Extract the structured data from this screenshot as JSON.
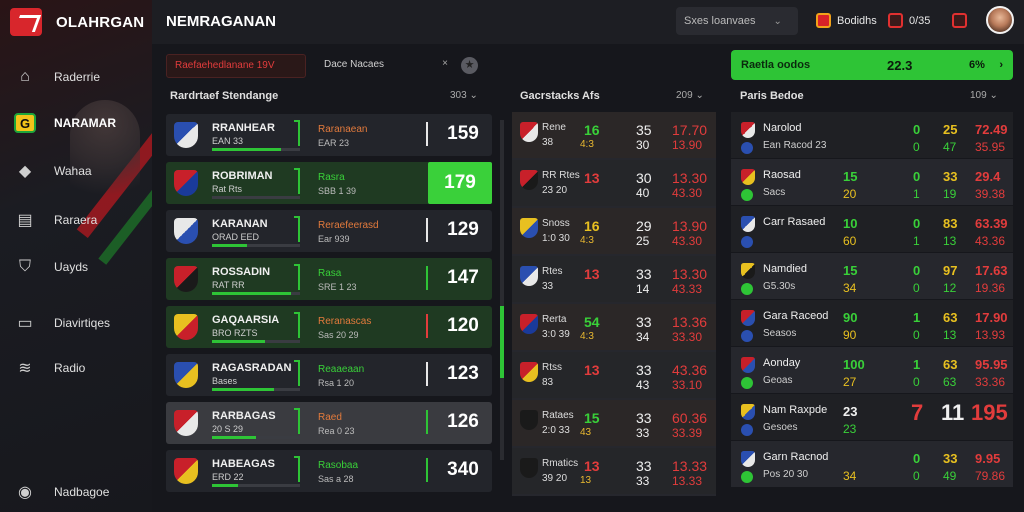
{
  "brand": {
    "name": "OLAHRGAN"
  },
  "header": {
    "title": "NEMRAGANAN",
    "search_text": "Sxes loanvaes",
    "stat1": "Bodidhs",
    "stat2": "0/35"
  },
  "nav": [
    {
      "label": "Raderrie",
      "icon": "home-icon",
      "active": false
    },
    {
      "label": "NARAMAR",
      "icon": "g-icon",
      "active": true
    },
    {
      "label": "Wahaa",
      "icon": "puzzle-icon",
      "active": false
    },
    {
      "label": "Raraera",
      "icon": "document-icon",
      "active": false
    },
    {
      "label": "Uayds",
      "icon": "shield-icon",
      "active": false
    },
    {
      "label": "Diavirtiqes",
      "icon": "monitor-icon",
      "active": false
    },
    {
      "label": "Radio",
      "icon": "wifi-icon",
      "active": false
    },
    {
      "label": "Nadbagoe",
      "icon": "help-icon",
      "active": false
    }
  ],
  "filters": {
    "select1": "Raefaehedlanane 19V",
    "select2": "Dace Nacaes"
  },
  "cta": {
    "label": "Raetla oodos",
    "v1": "22.3",
    "v2": "6%"
  },
  "panels": {
    "left": {
      "title": "Rardrtaef Stendange",
      "meta": "303"
    },
    "middle": {
      "title": "Gacrstacks Afs",
      "meta": "209"
    },
    "right": {
      "title": "Paris Bedoe",
      "meta": "109"
    }
  },
  "left_rows": [
    {
      "name": "RRANHEAR",
      "sub": "EAN 33",
      "odd1": "Raranaean",
      "odd2": "EAR 23",
      "score": "159",
      "fill": 0.78,
      "style": "dark",
      "crest": [
        "#2a4fb0",
        "#e8e8e8"
      ],
      "highlight": false
    },
    {
      "name": "ROBRIMAN",
      "sub": "Rat Rts",
      "odd1": "Rasra",
      "odd2": "SBB 1 39",
      "score": "179",
      "fill": 0,
      "style": "green",
      "crest": [
        "#c8202a",
        "#1a3a9a"
      ],
      "highlight": true
    },
    {
      "name": "KARANAN",
      "sub": "ORAD EED",
      "odd1": "Reraefeerasd",
      "odd2": "Ear 939",
      "score": "129",
      "fill": 0.4,
      "style": "dark",
      "crest": [
        "#e8e8e8",
        "#2a4fb0"
      ],
      "highlight": false
    },
    {
      "name": "ROSSADIN",
      "sub": "RAT RR",
      "odd1": "Rasa",
      "odd2": "SRE 1 23",
      "score": "147",
      "fill": 0.9,
      "style": "green",
      "crest": [
        "#c8202a",
        "#1a1a1a"
      ],
      "highlight": false
    },
    {
      "name": "GAQAARSIA",
      "sub": "BRO RZTS",
      "odd1": "Reranascas",
      "odd2": "Sas 20 29",
      "score": "120",
      "fill": 0.6,
      "style": "green",
      "crest": [
        "#e8c020",
        "#c8202a"
      ],
      "highlight": false
    },
    {
      "name": "RAGASRADAN",
      "sub": "Bases",
      "odd1": "Reaaeaan",
      "odd2": "Rsa 1 20",
      "score": "123",
      "fill": 0.7,
      "style": "dark",
      "crest": [
        "#2a4fb0",
        "#e8c020"
      ],
      "highlight": false
    },
    {
      "name": "RARBAGAS",
      "sub": "20 S 29",
      "odd1": "Raed",
      "odd2": "Rea 0 23",
      "score": "126",
      "fill": 0.5,
      "style": "grey",
      "crest": [
        "#c8202a",
        "#e8e8e8"
      ],
      "highlight": false
    },
    {
      "name": "HABEAGAS",
      "sub": "ERD 22",
      "odd1": "Rasobaa",
      "odd2": "Sas a 28",
      "score": "340",
      "fill": 0.3,
      "style": "dark",
      "crest": [
        "#c8202a",
        "#e8c020"
      ],
      "highlight": false
    }
  ],
  "mid_rows": [
    {
      "n1": "Rene",
      "n2": "38",
      "a": "16",
      "a2": "4:3",
      "b": "35",
      "b2": "30",
      "c": "17.70",
      "c2": "13.90",
      "crest": [
        "#c8202a",
        "#e8e8e8"
      ],
      "ac": "green"
    },
    {
      "n1": "RR Rtes",
      "n2": "23 20",
      "a": "13",
      "a2": "",
      "b": "30",
      "b2": "40",
      "c": "13.30",
      "c2": "43.30",
      "crest": [
        "#c8202a",
        "#1a1a1a"
      ],
      "ac": "red"
    },
    {
      "n1": "Snoss",
      "n2": "1:0 30",
      "a": "16",
      "a2": "4:3",
      "b": "29",
      "b2": "25",
      "c": "13.90",
      "c2": "43.30",
      "crest": [
        "#e8c020",
        "#2a4fb0"
      ],
      "ac": "yellow"
    },
    {
      "n1": "Rtes",
      "n2": "33",
      "a": "13",
      "a2": "",
      "b": "33",
      "b2": "14",
      "c": "13.30",
      "c2": "43.33",
      "crest": [
        "#2a4fb0",
        "#e8e8e8"
      ],
      "ac": "red"
    },
    {
      "n1": "Rerta",
      "n2": "3:0 39",
      "a": "54",
      "a2": "4:3",
      "b": "33",
      "b2": "34",
      "c": "13.36",
      "c2": "33.30",
      "crest": [
        "#c8202a",
        "#1a3a9a"
      ],
      "ac": "green"
    },
    {
      "n1": "Rtss",
      "n2": "83",
      "a": "13",
      "a2": "",
      "b": "33",
      "b2": "43",
      "c": "43.36",
      "c2": "33.10",
      "crest": [
        "#c8202a",
        "#e8c020"
      ],
      "ac": "red"
    },
    {
      "n1": "Rataes",
      "n2": "2:0 33",
      "a": "15",
      "a2": "43",
      "b": "33",
      "b2": "33",
      "c": "60.36",
      "c2": "33.39",
      "crest": [
        "#1a1a1a",
        "#1a1a1a"
      ],
      "ac": "green"
    },
    {
      "n1": "Rmatics",
      "n2": "39 20",
      "a": "13",
      "a2": "13",
      "b": "33",
      "b2": "33",
      "c": "13.33",
      "c2": "13.33",
      "crest": [
        "#1a1a1a",
        "#1a1a1a"
      ],
      "ac": "red"
    }
  ],
  "right_rows": [
    {
      "t1": "Narolod",
      "t2": "Ean Racod 23",
      "x1": "",
      "x2": "",
      "y1": "0",
      "y2": "0",
      "z1": "25",
      "z2": "47",
      "w1": "72.49",
      "w2": "35.95",
      "crest": [
        "#c8202a",
        "#e8e8e8"
      ],
      "big": false
    },
    {
      "t1": "Raosad",
      "t2": "Sacs",
      "x1": "15",
      "x2": "20",
      "y1": "0",
      "y2": "1",
      "z1": "33",
      "z2": "19",
      "w1": "29.4",
      "w2": "39.38",
      "crest": [
        "#c8202a",
        "#e8c020"
      ],
      "big": false
    },
    {
      "t1": "Carr Rasaed",
      "t2": "",
      "x1": "10",
      "x2": "60",
      "y1": "0",
      "y2": "1",
      "z1": "83",
      "z2": "13",
      "w1": "63.39",
      "w2": "43.36",
      "crest": [
        "#2a4fb0",
        "#e8e8e8"
      ],
      "big": false
    },
    {
      "t1": "Namdied",
      "t2": "G5.30s",
      "x1": "15",
      "x2": "34",
      "y1": "0",
      "y2": "0",
      "z1": "97",
      "z2": "12",
      "w1": "17.63",
      "w2": "19.36",
      "crest": [
        "#e8c020",
        "#1a1a1a"
      ],
      "big": false
    },
    {
      "t1": "Gara Raceod",
      "t2": "Seasos",
      "x1": "90",
      "x2": "90",
      "y1": "1",
      "y2": "0",
      "z1": "63",
      "z2": "13",
      "w1": "17.90",
      "w2": "13.93",
      "crest": [
        "#c8202a",
        "#2a4fb0"
      ],
      "big": false
    },
    {
      "t1": "Aonday",
      "t2": "Geoas",
      "x1": "100",
      "x2": "27",
      "y1": "1",
      "y2": "0",
      "z1": "63",
      "z2": "63",
      "w1": "95.95",
      "w2": "33.36",
      "crest": [
        "#c8202a",
        "#2a4fb0"
      ],
      "big": false
    },
    {
      "t1": "Nam Raxpde",
      "t2": "Gesoes",
      "x1": "23",
      "x2": "23",
      "y1": "7",
      "y2": "",
      "z1": "11",
      "z2": "",
      "w1": "195",
      "w2": "",
      "crest": [
        "#e8c020",
        "#2a4fb0"
      ],
      "big": true
    },
    {
      "t1": "Garn Racnod",
      "t2": "Pos 20 30",
      "x1": "",
      "x2": "34",
      "y1": "0",
      "y2": "0",
      "z1": "33",
      "z2": "49",
      "w1": "9.95",
      "w2": "79.86",
      "crest": [
        "#2a4fb0",
        "#e8e8e8"
      ],
      "big": false
    }
  ]
}
